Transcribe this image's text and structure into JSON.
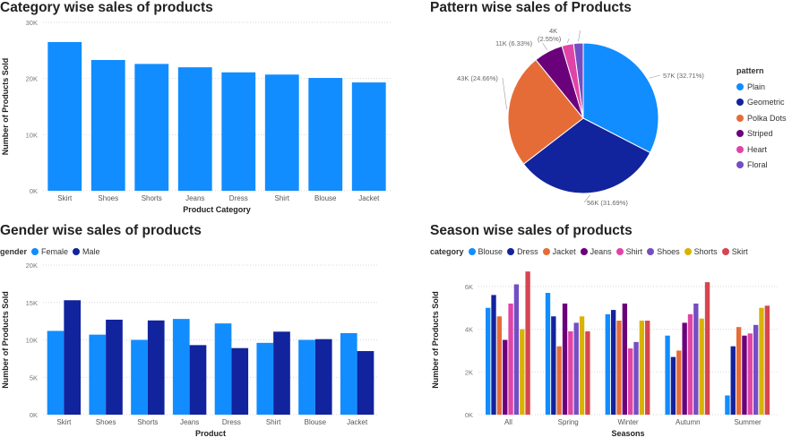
{
  "panels": {
    "category": {
      "title": "Category wise sales of products"
    },
    "pattern": {
      "title": "Pattern wise sales of Products"
    },
    "gender": {
      "title": "Gender wise sales of products"
    },
    "season": {
      "title": "Season wise sales of products"
    }
  },
  "chart_data": [
    {
      "type": "bar",
      "title": "Category wise sales of products",
      "xlabel": "Product Category",
      "ylabel": "Number of Products Sold",
      "categories": [
        "Skirt",
        "Shoes",
        "Shorts",
        "Jeans",
        "Dress",
        "Shirt",
        "Blouse",
        "Jacket"
      ],
      "values": [
        26500,
        23300,
        22600,
        22000,
        21100,
        20700,
        20100,
        19300
      ],
      "ylim": [
        0,
        30000
      ],
      "yticks": [
        "0K",
        "10K",
        "20K",
        "30K"
      ],
      "color": "#118dff",
      "grid": true
    },
    {
      "type": "pie",
      "title": "Pattern wise sales of Products",
      "legend_title": "pattern",
      "legend_position": "right",
      "slices": [
        {
          "name": "Plain",
          "value": 57,
          "label": "57K (32.71%)",
          "color": "#118dff"
        },
        {
          "name": "Geometric",
          "value": 56,
          "label": "56K (31.69%)",
          "color": "#12239e"
        },
        {
          "name": "Polka Dots",
          "value": 43,
          "label": "43K (24.66%)",
          "color": "#e66c37"
        },
        {
          "name": "Striped",
          "value": 11,
          "label": "11K (6.33%)",
          "color": "#6b007b"
        },
        {
          "name": "Heart",
          "value": 4.4,
          "label": "(2.55%)",
          "color": "#e044a7"
        },
        {
          "name": "Floral",
          "value": 3.6,
          "label": "4K",
          "color": "#744ec2"
        }
      ]
    },
    {
      "type": "bar",
      "title": "Gender wise sales of products",
      "xlabel": "Product",
      "ylabel": "Number of Products Sold",
      "legend_title": "gender",
      "legend_position": "top-left",
      "categories": [
        "Skirt",
        "Shoes",
        "Shorts",
        "Jeans",
        "Dress",
        "Shirt",
        "Blouse",
        "Jacket"
      ],
      "series": [
        {
          "name": "Female",
          "color": "#118dff",
          "values": [
            11200,
            10700,
            10000,
            12800,
            12200,
            9600,
            10000,
            10900
          ]
        },
        {
          "name": "Male",
          "color": "#12239e",
          "values": [
            15300,
            12700,
            12600,
            9300,
            8900,
            11100,
            10100,
            8500
          ]
        }
      ],
      "ylim": [
        0,
        20000
      ],
      "yticks": [
        "0K",
        "5K",
        "10K",
        "15K",
        "20K"
      ],
      "grid": true
    },
    {
      "type": "bar",
      "title": "Season wise sales of products",
      "xlabel": "Seasons",
      "ylabel": "Number of Products Sold",
      "legend_title": "category",
      "legend_position": "top-left",
      "categories": [
        "All",
        "Spring",
        "Winter",
        "Autumn",
        "Summer"
      ],
      "series": [
        {
          "name": "Blouse",
          "color": "#118dff",
          "values": [
            5000,
            5700,
            4700,
            3700,
            900
          ]
        },
        {
          "name": "Dress",
          "color": "#12239e",
          "values": [
            5600,
            4600,
            4900,
            2700,
            3200
          ]
        },
        {
          "name": "Jacket",
          "color": "#e66c37",
          "values": [
            4600,
            3200,
            4400,
            3000,
            4100
          ]
        },
        {
          "name": "Jeans",
          "color": "#6b007b",
          "values": [
            3500,
            5200,
            5200,
            4300,
            3700
          ]
        },
        {
          "name": "Shirt",
          "color": "#e044a7",
          "values": [
            5200,
            3900,
            3100,
            4700,
            3800
          ]
        },
        {
          "name": "Shoes",
          "color": "#744ec2",
          "values": [
            6100,
            4300,
            3400,
            5200,
            4200
          ]
        },
        {
          "name": "Shorts",
          "color": "#d9b300",
          "values": [
            4000,
            4600,
            4400,
            4500,
            5000
          ]
        },
        {
          "name": "Skirt",
          "color": "#d64550",
          "values": [
            6700,
            3900,
            4400,
            6200,
            5100
          ]
        }
      ],
      "ylim": [
        0,
        7000
      ],
      "yticks": [
        "0K",
        "2K",
        "4K",
        "6K"
      ],
      "grid": true
    }
  ]
}
